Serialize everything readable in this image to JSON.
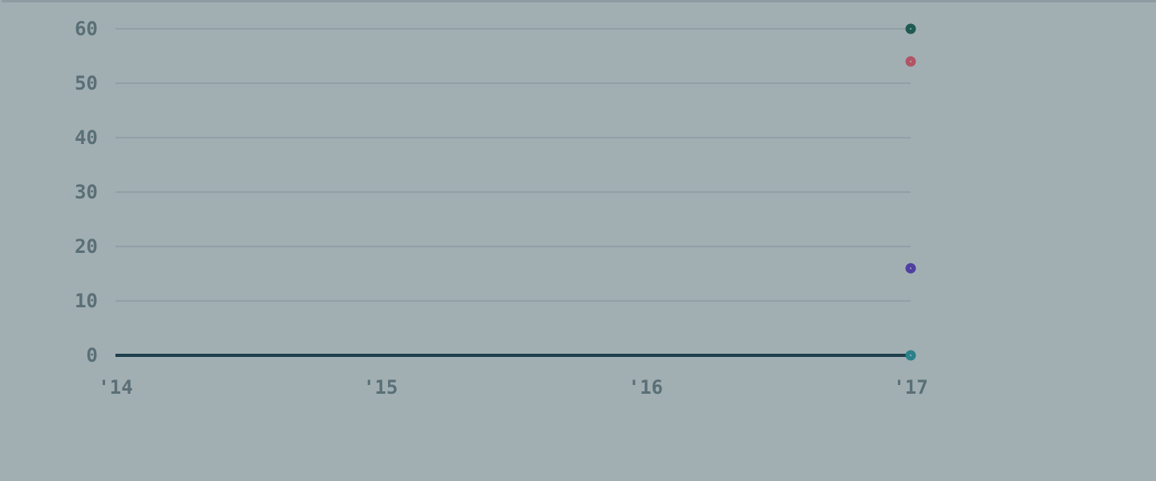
{
  "chart_data": {
    "type": "scatter",
    "x_tick_labels": [
      "'14",
      "'15",
      "'16",
      "'17"
    ],
    "y_tick_labels": [
      "0",
      "10",
      "20",
      "30",
      "40",
      "50",
      "60"
    ],
    "x_ticks": [
      2014,
      2015,
      2016,
      2017
    ],
    "y_ticks": [
      0,
      10,
      20,
      30,
      40,
      50,
      60
    ],
    "xlim": [
      2014,
      2017
    ],
    "ylim": [
      0,
      60
    ],
    "grid": true,
    "baseline": {
      "x": [
        2014,
        2017
      ],
      "y": [
        0,
        0
      ],
      "color": "#1e3f4c"
    },
    "series": [
      {
        "x": [
          2017
        ],
        "values": [
          60
        ],
        "color": "#1f5b52"
      },
      {
        "x": [
          2017
        ],
        "values": [
          54
        ],
        "color": "#b15466"
      },
      {
        "x": [
          2017
        ],
        "values": [
          16
        ],
        "color": "#4f3fa0"
      },
      {
        "x": [
          2017
        ],
        "values": [
          0
        ],
        "color": "#2b8189"
      }
    ]
  },
  "colors": {
    "background": "#a1afb3",
    "grid": "#8d9ca3",
    "tick_label": "#5a6f76"
  }
}
